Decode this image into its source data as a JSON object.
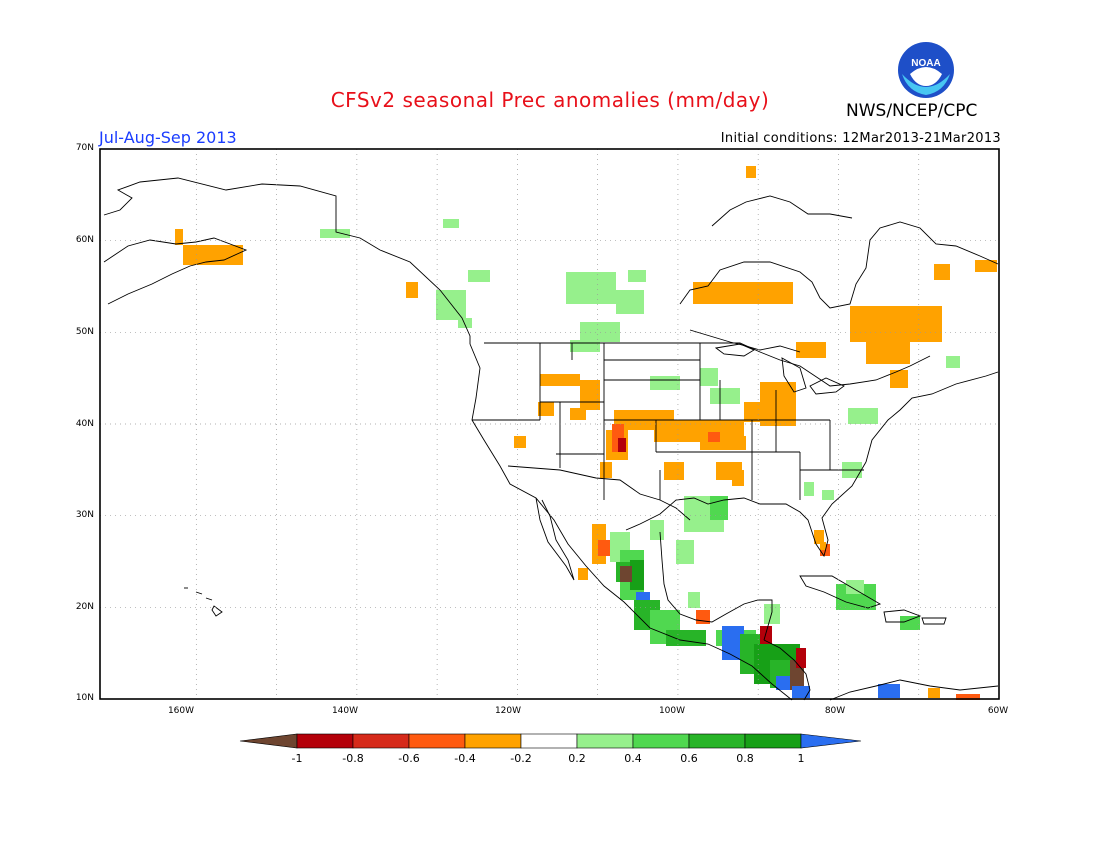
{
  "header": {
    "title": "CFSv2 seasonal Prec anomalies (mm/day)",
    "agency": "NWS/NCEP/CPC",
    "logo_text": "NOAA",
    "season": "Jul-Aug-Sep 2013",
    "initial_conditions": "Initial conditions: 12Mar2013-21Mar2013"
  },
  "map": {
    "lon_range": [
      -172,
      -60
    ],
    "lat_range": [
      10,
      70
    ],
    "y_ticks": [
      "70N",
      "60N",
      "50N",
      "40N",
      "30N",
      "20N",
      "10N"
    ],
    "x_ticks": [
      "160W",
      "140W",
      "120W",
      "100W",
      "80W",
      "60W"
    ],
    "grid_lines": "dotted every 10 degrees",
    "colors": {
      "land_line": "#000000",
      "grid": "#999999"
    }
  },
  "legend": {
    "labels": [
      "-1",
      "-0.8",
      "-0.6",
      "-0.4",
      "-0.2",
      "0.2",
      "0.4",
      "0.6",
      "0.8",
      "1"
    ],
    "colors": [
      "#6e4530",
      "#b4000a",
      "#d62a1a",
      "#ff5a10",
      "#ffa200",
      "#ffffff",
      "#96f08c",
      "#50d850",
      "#28b428",
      "#17a017",
      "#2a6ef0"
    ]
  }
}
